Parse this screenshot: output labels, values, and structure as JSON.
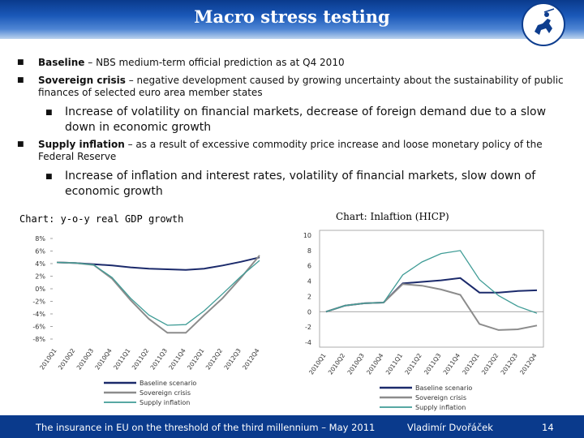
{
  "title": "Macro stress testing",
  "bullets": {
    "baseline_kw": "Baseline",
    "baseline_text": " – NBS medium-term official prediction as at Q4 2010",
    "sovereign_kw": "Sovereign crisis",
    "sovereign_text": " – negative development caused by growing uncertainty about the sustainability of public finances of selected euro area member states",
    "sovereign_sub": "Increase of volatility on financial markets, decrease of foreign demand due to a slow down in economic growth",
    "supply_kw": "Supply inflation",
    "supply_text": " – as a result of excessive commodity price increase and loose monetary policy of the Federal Reserve",
    "supply_sub": "Increase of inflation and interest rates, volatility of financial markets, slow down of economic growth"
  },
  "footer": {
    "left": "The insurance in EU on the threshold of the third millennium – May 2011",
    "author": "Vladimír Dvořáček",
    "page": "14"
  },
  "colors": {
    "baseline": "#1b2a6b",
    "sovereign": "#8c8c8c",
    "supply": "#3f9c96"
  },
  "chart_data": [
    {
      "type": "line",
      "title": "Chart: y-o-y real GDP growth",
      "categories": [
        "2010Q1",
        "2010Q2",
        "2010Q3",
        "2010Q4",
        "2011Q1",
        "2011Q2",
        "2011Q3",
        "2011Q4",
        "2012Q1",
        "2012Q2",
        "2012Q3",
        "2012Q4"
      ],
      "y_ticks": [
        "8%",
        "6%",
        "4%",
        "2%",
        "0%",
        "-2%",
        "-4%",
        "-6%",
        "-8%"
      ],
      "ylim": [
        -8,
        8
      ],
      "series": [
        {
          "name": "Baseline scenario",
          "values": [
            4.2,
            4.1,
            3.9,
            3.7,
            3.4,
            3.2,
            3.1,
            3.0,
            3.2,
            3.7,
            4.3,
            5.0
          ]
        },
        {
          "name": "Sovereign crisis",
          "values": [
            4.2,
            4.1,
            3.8,
            1.6,
            -1.8,
            -4.8,
            -7.0,
            -7.0,
            -4.2,
            -1.5,
            1.8,
            5.3
          ]
        },
        {
          "name": "Supply inflation",
          "values": [
            4.2,
            4.1,
            3.8,
            1.8,
            -1.5,
            -4.2,
            -5.8,
            -5.7,
            -3.5,
            -0.8,
            2.0,
            4.5
          ]
        }
      ]
    },
    {
      "type": "line",
      "title": "Chart: Inlaftion (HICP)",
      "categories": [
        "2010Q1",
        "2010Q2",
        "2010Q3",
        "2010Q4",
        "2011Q1",
        "2011Q2",
        "2011Q3",
        "2011Q4",
        "2012Q1",
        "2012Q2",
        "2012Q3",
        "2012Q4"
      ],
      "y_ticks": [
        "10",
        "8",
        "6",
        "4",
        "2",
        "0",
        "-2",
        "-4"
      ],
      "ylim": [
        -4,
        10
      ],
      "series": [
        {
          "name": "Baseline scenario",
          "values": [
            0.0,
            0.8,
            1.1,
            1.2,
            3.7,
            3.9,
            4.1,
            4.4,
            2.5,
            2.5,
            2.7,
            2.8
          ]
        },
        {
          "name": "Sovereign crisis",
          "values": [
            0.0,
            0.8,
            1.1,
            1.2,
            3.6,
            3.4,
            2.9,
            2.2,
            -1.6,
            -2.4,
            -2.3,
            -1.8
          ]
        },
        {
          "name": "Supply inflation",
          "values": [
            0.0,
            0.8,
            1.1,
            1.2,
            4.8,
            6.5,
            7.6,
            8.0,
            4.2,
            2.1,
            0.7,
            -0.2
          ]
        }
      ]
    }
  ]
}
